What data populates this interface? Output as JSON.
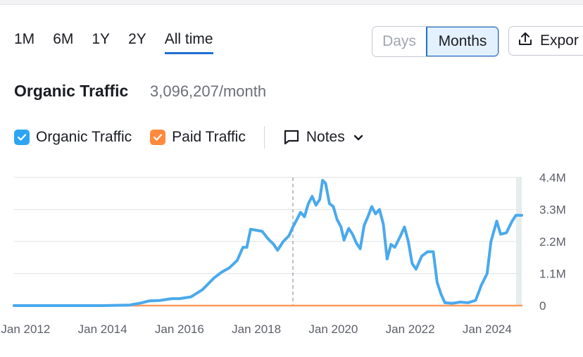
{
  "periods": [
    "1M",
    "6M",
    "1Y",
    "2Y",
    "All time"
  ],
  "active_period": "All time",
  "granularity": {
    "days_label": "Days",
    "months_label": "Months",
    "selected": "Months"
  },
  "export_label": "Expor",
  "header": {
    "title": "Organic Traffic",
    "value": "3,096,207/month"
  },
  "legend": {
    "organic": {
      "label": "Organic Traffic",
      "checked": true,
      "color": "#2ea5f2"
    },
    "paid": {
      "label": "Paid Traffic",
      "checked": true,
      "color": "#ff8a3d"
    },
    "notes_label": "Notes"
  },
  "chart_data": {
    "type": "line",
    "ytick_labels": [
      "4.4M",
      "3.3M",
      "2.2M",
      "1.1M",
      "0"
    ],
    "yticks": [
      4.4,
      3.3,
      2.2,
      1.1,
      0
    ],
    "ylim": [
      0,
      4.4
    ],
    "xtick_labels": [
      "Jan 2012",
      "Jan 2014",
      "Jan 2016",
      "Jan 2018",
      "Jan 2020",
      "Jan 2022",
      "Jan 2024"
    ],
    "xticks": [
      2012,
      2014,
      2016,
      2018,
      2020,
      2022,
      2024
    ],
    "xlim": [
      2011.7,
      2024.9
    ],
    "marker_x": 2018.95,
    "grid": true,
    "series": [
      {
        "name": "Organic Traffic",
        "color": "#4aa9ec",
        "points": [
          [
            2011.7,
            0.0
          ],
          [
            2012.5,
            0.0
          ],
          [
            2013.5,
            0.0
          ],
          [
            2014.0,
            0.0
          ],
          [
            2014.7,
            0.02
          ],
          [
            2015.0,
            0.09
          ],
          [
            2015.2,
            0.16
          ],
          [
            2015.5,
            0.18
          ],
          [
            2015.8,
            0.24
          ],
          [
            2016.0,
            0.24
          ],
          [
            2016.3,
            0.3
          ],
          [
            2016.6,
            0.55
          ],
          [
            2016.9,
            0.95
          ],
          [
            2017.1,
            1.15
          ],
          [
            2017.3,
            1.3
          ],
          [
            2017.5,
            1.55
          ],
          [
            2017.65,
            2.0
          ],
          [
            2017.75,
            2.0
          ],
          [
            2017.85,
            2.62
          ],
          [
            2017.95,
            2.6
          ],
          [
            2018.15,
            2.55
          ],
          [
            2018.3,
            2.3
          ],
          [
            2018.45,
            2.1
          ],
          [
            2018.55,
            1.9
          ],
          [
            2018.7,
            2.2
          ],
          [
            2018.85,
            2.4
          ],
          [
            2018.95,
            2.7
          ],
          [
            2019.05,
            2.95
          ],
          [
            2019.15,
            3.2
          ],
          [
            2019.25,
            3.05
          ],
          [
            2019.35,
            3.5
          ],
          [
            2019.45,
            3.75
          ],
          [
            2019.55,
            3.45
          ],
          [
            2019.65,
            3.65
          ],
          [
            2019.72,
            4.3
          ],
          [
            2019.8,
            4.2
          ],
          [
            2019.9,
            3.5
          ],
          [
            2020.0,
            3.4
          ],
          [
            2020.1,
            2.95
          ],
          [
            2020.2,
            2.7
          ],
          [
            2020.28,
            2.25
          ],
          [
            2020.4,
            2.65
          ],
          [
            2020.5,
            2.45
          ],
          [
            2020.6,
            2.15
          ],
          [
            2020.7,
            1.95
          ],
          [
            2020.8,
            2.75
          ],
          [
            2020.9,
            3.05
          ],
          [
            2021.0,
            3.4
          ],
          [
            2021.1,
            3.15
          ],
          [
            2021.2,
            3.3
          ],
          [
            2021.3,
            2.8
          ],
          [
            2021.4,
            1.6
          ],
          [
            2021.5,
            2.1
          ],
          [
            2021.6,
            2.0
          ],
          [
            2021.75,
            2.4
          ],
          [
            2021.85,
            2.7
          ],
          [
            2021.95,
            2.2
          ],
          [
            2022.05,
            1.45
          ],
          [
            2022.15,
            1.25
          ],
          [
            2022.3,
            1.7
          ],
          [
            2022.45,
            1.85
          ],
          [
            2022.6,
            1.85
          ],
          [
            2022.7,
            0.8
          ],
          [
            2022.8,
            0.4
          ],
          [
            2022.9,
            0.1
          ],
          [
            2023.1,
            0.08
          ],
          [
            2023.3,
            0.12
          ],
          [
            2023.5,
            0.1
          ],
          [
            2023.7,
            0.18
          ],
          [
            2023.85,
            0.7
          ],
          [
            2024.0,
            1.1
          ],
          [
            2024.1,
            2.2
          ],
          [
            2024.25,
            2.9
          ],
          [
            2024.35,
            2.45
          ],
          [
            2024.5,
            2.5
          ],
          [
            2024.65,
            2.9
          ],
          [
            2024.75,
            3.1
          ],
          [
            2024.9,
            3.1
          ]
        ]
      },
      {
        "name": "Paid Traffic",
        "color": "#ff9a5c",
        "points": [
          [
            2011.7,
            0.0
          ],
          [
            2024.9,
            0.0
          ]
        ]
      }
    ]
  }
}
